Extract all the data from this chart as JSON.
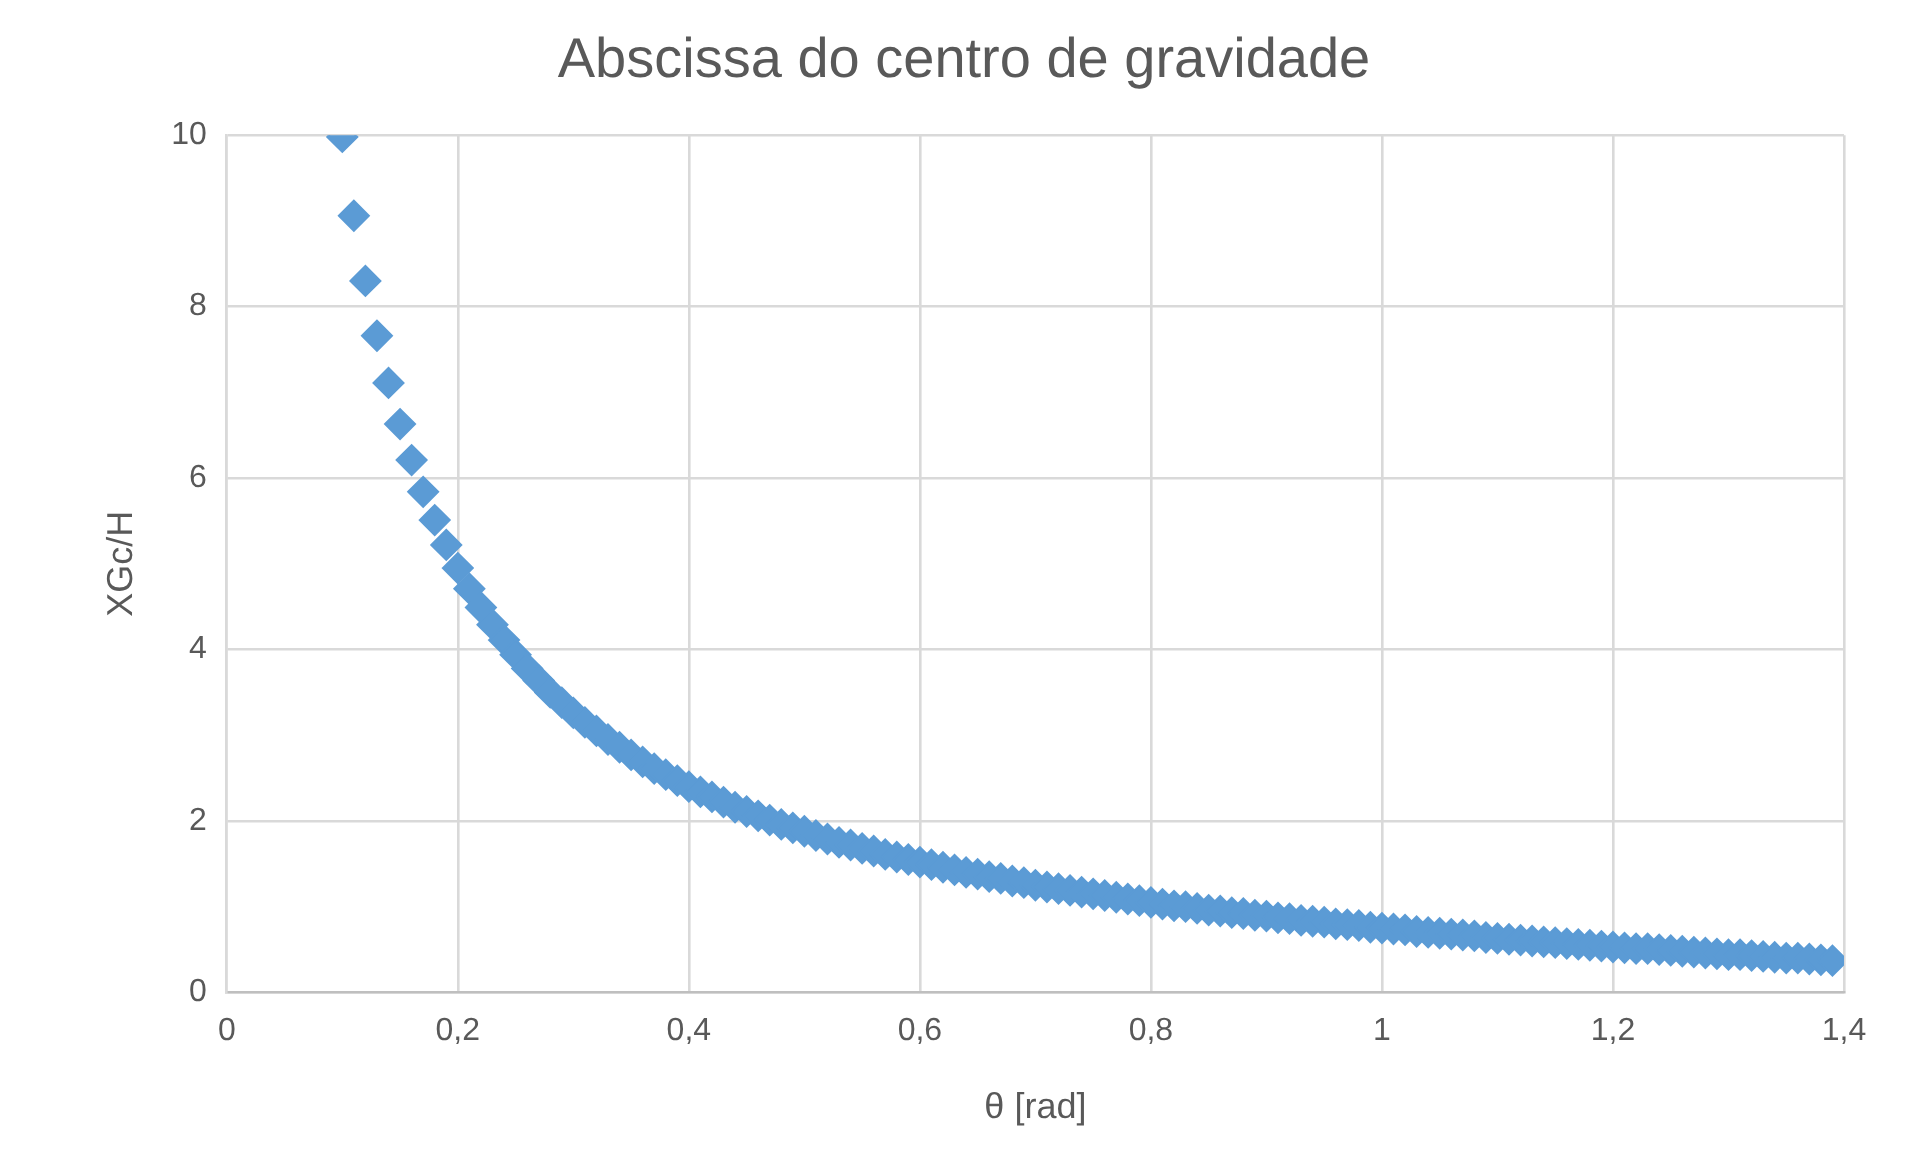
{
  "chart_data": {
    "type": "scatter",
    "title": "Abscissa do centro de gravidade",
    "xlabel": "θ [rad]",
    "ylabel": "XGc/H",
    "xlim": [
      0,
      1.4
    ],
    "xticks": [
      0,
      {
        "value": 0.2,
        "label": "0,2"
      },
      {
        "value": 0.4,
        "label": "0,4"
      },
      {
        "value": 0.6,
        "label": "0,6"
      },
      {
        "value": 0.8,
        "label": "0,8"
      },
      1,
      {
        "value": 1.2,
        "label": "1,2"
      },
      {
        "value": 1.4,
        "label": "1,4"
      }
    ],
    "ylim": [
      0,
      10
    ],
    "yticks": [
      0,
      2,
      4,
      6,
      8,
      10
    ],
    "grid": true,
    "legend": false,
    "marker": "diamond",
    "series": [
      {
        "color": "#5b9bd5",
        "x": [
          0.1,
          0.11,
          0.12,
          0.13,
          0.14,
          0.15,
          0.16,
          0.17,
          0.18,
          0.19,
          0.2,
          0.21,
          0.22,
          0.23,
          0.24,
          0.25,
          0.26,
          0.27,
          0.28,
          0.29,
          0.3,
          0.31,
          0.32,
          0.33,
          0.34,
          0.35,
          0.36,
          0.37,
          0.38,
          0.39,
          0.4,
          0.41,
          0.42,
          0.43,
          0.44,
          0.45,
          0.46,
          0.47,
          0.48,
          0.49,
          0.5,
          0.51,
          0.52,
          0.53,
          0.54,
          0.55,
          0.56,
          0.57,
          0.58,
          0.59,
          0.6,
          0.61,
          0.62,
          0.63,
          0.64,
          0.65,
          0.66,
          0.67,
          0.68,
          0.69,
          0.7,
          0.71,
          0.72,
          0.73,
          0.74,
          0.75,
          0.76,
          0.77,
          0.78,
          0.79,
          0.8,
          0.81,
          0.82,
          0.83,
          0.84,
          0.85,
          0.86,
          0.87,
          0.88,
          0.89,
          0.9,
          0.91,
          0.92,
          0.93,
          0.94,
          0.95,
          0.96,
          0.97,
          0.98,
          0.99,
          1.0,
          1.01,
          1.02,
          1.03,
          1.04,
          1.05,
          1.06,
          1.07,
          1.08,
          1.09,
          1.1,
          1.11,
          1.12,
          1.13,
          1.14,
          1.15,
          1.16,
          1.17,
          1.18,
          1.19,
          1.2,
          1.21,
          1.22,
          1.23,
          1.24,
          1.25,
          1.26,
          1.27,
          1.28,
          1.29,
          1.3,
          1.31,
          1.32,
          1.33,
          1.34,
          1.35,
          1.36,
          1.37,
          1.38,
          1.39
        ],
        "values": [
          9.98,
          9.06,
          8.3,
          7.66,
          7.11,
          6.63,
          6.21,
          5.84,
          5.51,
          5.22,
          4.95,
          4.71,
          4.49,
          4.29,
          4.11,
          3.94,
          3.78,
          3.64,
          3.5,
          3.38,
          3.26,
          3.15,
          3.05,
          2.95,
          2.86,
          2.77,
          2.69,
          2.61,
          2.54,
          2.47,
          2.4,
          2.34,
          2.28,
          2.22,
          2.16,
          2.11,
          2.06,
          2.01,
          1.96,
          1.92,
          1.88,
          1.83,
          1.79,
          1.75,
          1.72,
          1.68,
          1.65,
          1.61,
          1.58,
          1.55,
          1.52,
          1.49,
          1.46,
          1.43,
          1.4,
          1.38,
          1.35,
          1.33,
          1.3,
          1.28,
          1.25,
          1.23,
          1.21,
          1.19,
          1.17,
          1.15,
          1.13,
          1.11,
          1.09,
          1.07,
          1.05,
          1.03,
          1.01,
          1.0,
          0.98,
          0.96,
          0.95,
          0.93,
          0.92,
          0.9,
          0.89,
          0.87,
          0.86,
          0.84,
          0.83,
          0.82,
          0.8,
          0.79,
          0.78,
          0.76,
          0.75,
          0.74,
          0.73,
          0.71,
          0.7,
          0.69,
          0.68,
          0.67,
          0.66,
          0.64,
          0.63,
          0.62,
          0.61,
          0.6,
          0.59,
          0.58,
          0.57,
          0.56,
          0.55,
          0.54,
          0.53,
          0.52,
          0.51,
          0.51,
          0.5,
          0.49,
          0.48,
          0.47,
          0.46,
          0.45,
          0.44,
          0.44,
          0.43,
          0.42,
          0.41,
          0.4,
          0.4,
          0.39,
          0.38,
          0.37
        ]
      }
    ]
  }
}
